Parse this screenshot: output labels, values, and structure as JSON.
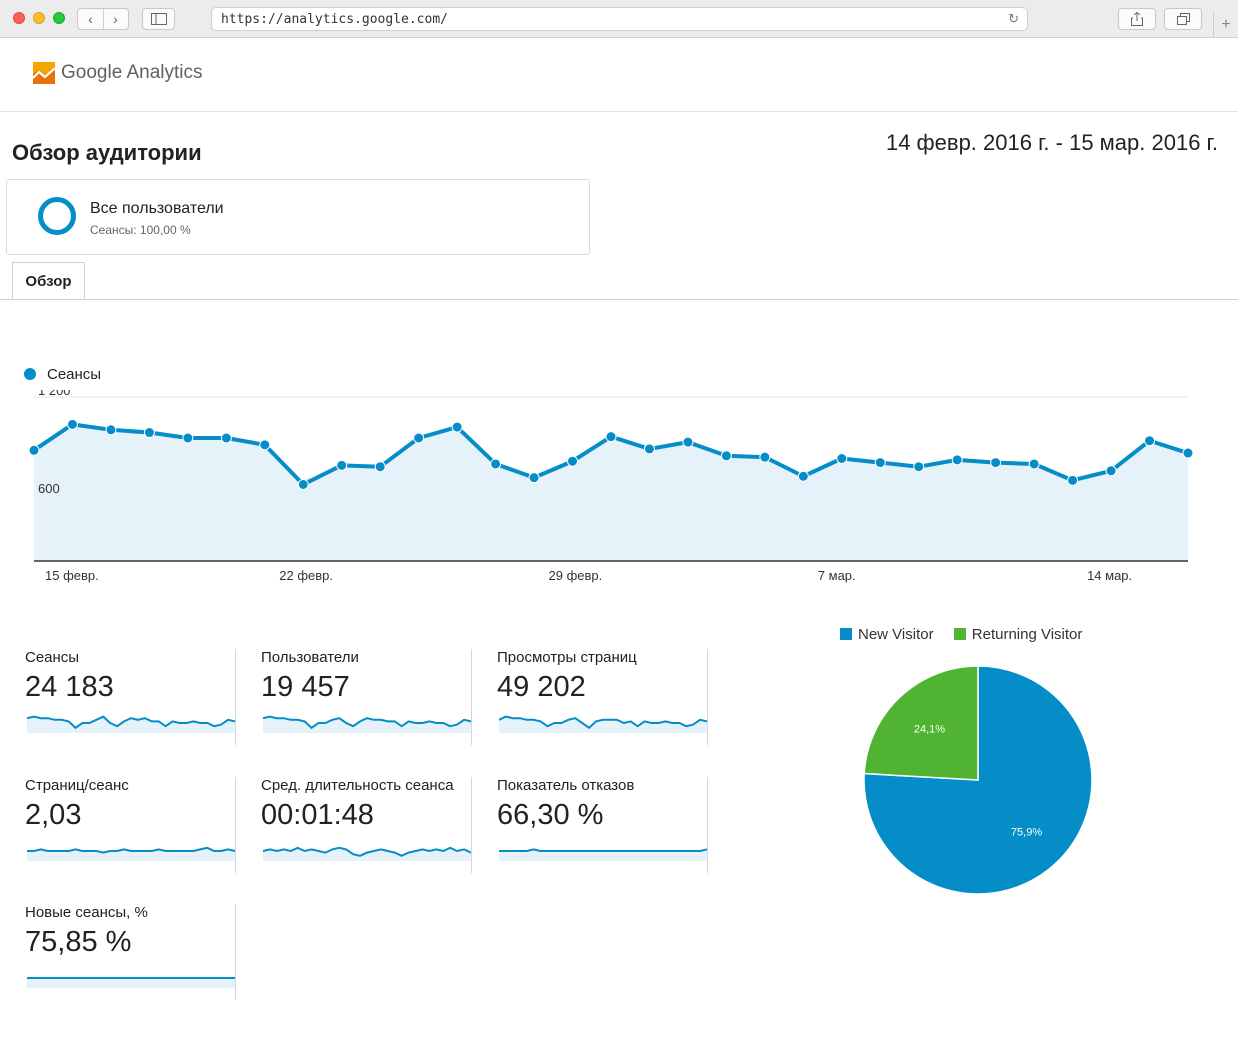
{
  "browser": {
    "url": "https://analytics.google.com/",
    "icons": [
      "back-icon",
      "forward-icon",
      "sidebar-icon",
      "reload-icon",
      "share-icon",
      "tabs-icon",
      "new-tab-icon"
    ]
  },
  "header": {
    "app_name": "Google Analytics"
  },
  "page": {
    "title": "Обзор аудитории",
    "date_range": "14 февр. 2016 г. - 15 мар. 2016 г."
  },
  "segment": {
    "name": "Все пользователи",
    "subtitle": "Сеансы: 100,00 %"
  },
  "tabs": [
    {
      "label": "Обзор",
      "active": true
    }
  ],
  "chart_data": [
    {
      "type": "area",
      "series": [
        {
          "name": "Сеансы",
          "color": "#058dc7",
          "values": [
            810,
            1000,
            960,
            940,
            900,
            900,
            850,
            560,
            700,
            690,
            900,
            980,
            710,
            610,
            730,
            910,
            820,
            870,
            770,
            760,
            620,
            750,
            720,
            690,
            740,
            720,
            710,
            590,
            660,
            880,
            790
          ]
        }
      ],
      "y_ticks": [
        "1 200",
        "600"
      ],
      "ylim": [
        0,
        1200
      ],
      "x_ticks": [
        {
          "label": "15 февр.",
          "index": 0
        },
        {
          "label": "22 февр.",
          "index": 7
        },
        {
          "label": "29 февр.",
          "index": 14
        },
        {
          "label": "7 мар.",
          "index": 21
        },
        {
          "label": "14 мар.",
          "index": 28
        }
      ],
      "grid": true
    },
    {
      "type": "pie",
      "slices": [
        {
          "label": "New Visitor",
          "value": 75.9,
          "text": "75,9%",
          "color": "#058dc7"
        },
        {
          "label": "Returning Visitor",
          "value": 24.1,
          "text": "24,1%",
          "color": "#50b432"
        }
      ],
      "legend": "top"
    }
  ],
  "metrics": [
    {
      "label": "Сеансы",
      "value": "24 183",
      "spark": [
        8,
        9,
        8,
        8,
        7,
        7,
        6,
        2,
        5,
        5,
        7,
        9,
        5,
        3,
        6,
        8,
        7,
        8,
        6,
        6,
        3,
        6,
        5,
        5,
        6,
        5,
        5,
        3,
        4,
        7,
        6
      ]
    },
    {
      "label": "Пользователи",
      "value": "19 457",
      "spark": [
        8,
        9,
        8,
        8,
        7,
        7,
        6,
        2,
        5,
        5,
        7,
        8,
        5,
        3,
        6,
        8,
        7,
        7,
        6,
        6,
        3,
        6,
        5,
        5,
        6,
        5,
        5,
        3,
        4,
        7,
        6
      ]
    },
    {
      "label": "Просмотры страниц",
      "value": "49 202",
      "spark": [
        7,
        9,
        8,
        8,
        7,
        7,
        6,
        3,
        5,
        5,
        7,
        8,
        5,
        2,
        6,
        7,
        7,
        7,
        5,
        6,
        3,
        6,
        5,
        5,
        6,
        5,
        5,
        3,
        4,
        7,
        6
      ]
    },
    {
      "label": "Страниц/сеанс",
      "value": "2,03",
      "spark": [
        5,
        5,
        6,
        5,
        5,
        5,
        5,
        6,
        5,
        5,
        5,
        4,
        5,
        5,
        6,
        5,
        5,
        5,
        5,
        6,
        5,
        5,
        5,
        5,
        5,
        6,
        7,
        5,
        5,
        6,
        5
      ]
    },
    {
      "label": "Сред. длительность сеанса",
      "value": "00:01:48",
      "spark": [
        5,
        6,
        5,
        6,
        5,
        7,
        5,
        6,
        5,
        4,
        6,
        7,
        6,
        3,
        2,
        4,
        5,
        6,
        5,
        4,
        2,
        4,
        5,
        6,
        5,
        6,
        5,
        7,
        5,
        6,
        4
      ]
    },
    {
      "label": "Показатель отказов",
      "value": "66,30 %",
      "spark": [
        5,
        5,
        5,
        5,
        5,
        6,
        5,
        5,
        5,
        5,
        5,
        5,
        5,
        5,
        5,
        5,
        5,
        5,
        5,
        5,
        5,
        5,
        5,
        5,
        5,
        5,
        5,
        5,
        5,
        5,
        6
      ]
    },
    {
      "label": "Новые сеансы, %",
      "value": "75,85 %",
      "spark": [
        5,
        5,
        5,
        5,
        5,
        5,
        5,
        5,
        5,
        5,
        5,
        5,
        5,
        5,
        5,
        5,
        5,
        5,
        5,
        5,
        5,
        5,
        5,
        5,
        5,
        5,
        5,
        5,
        5,
        5,
        5
      ]
    }
  ]
}
